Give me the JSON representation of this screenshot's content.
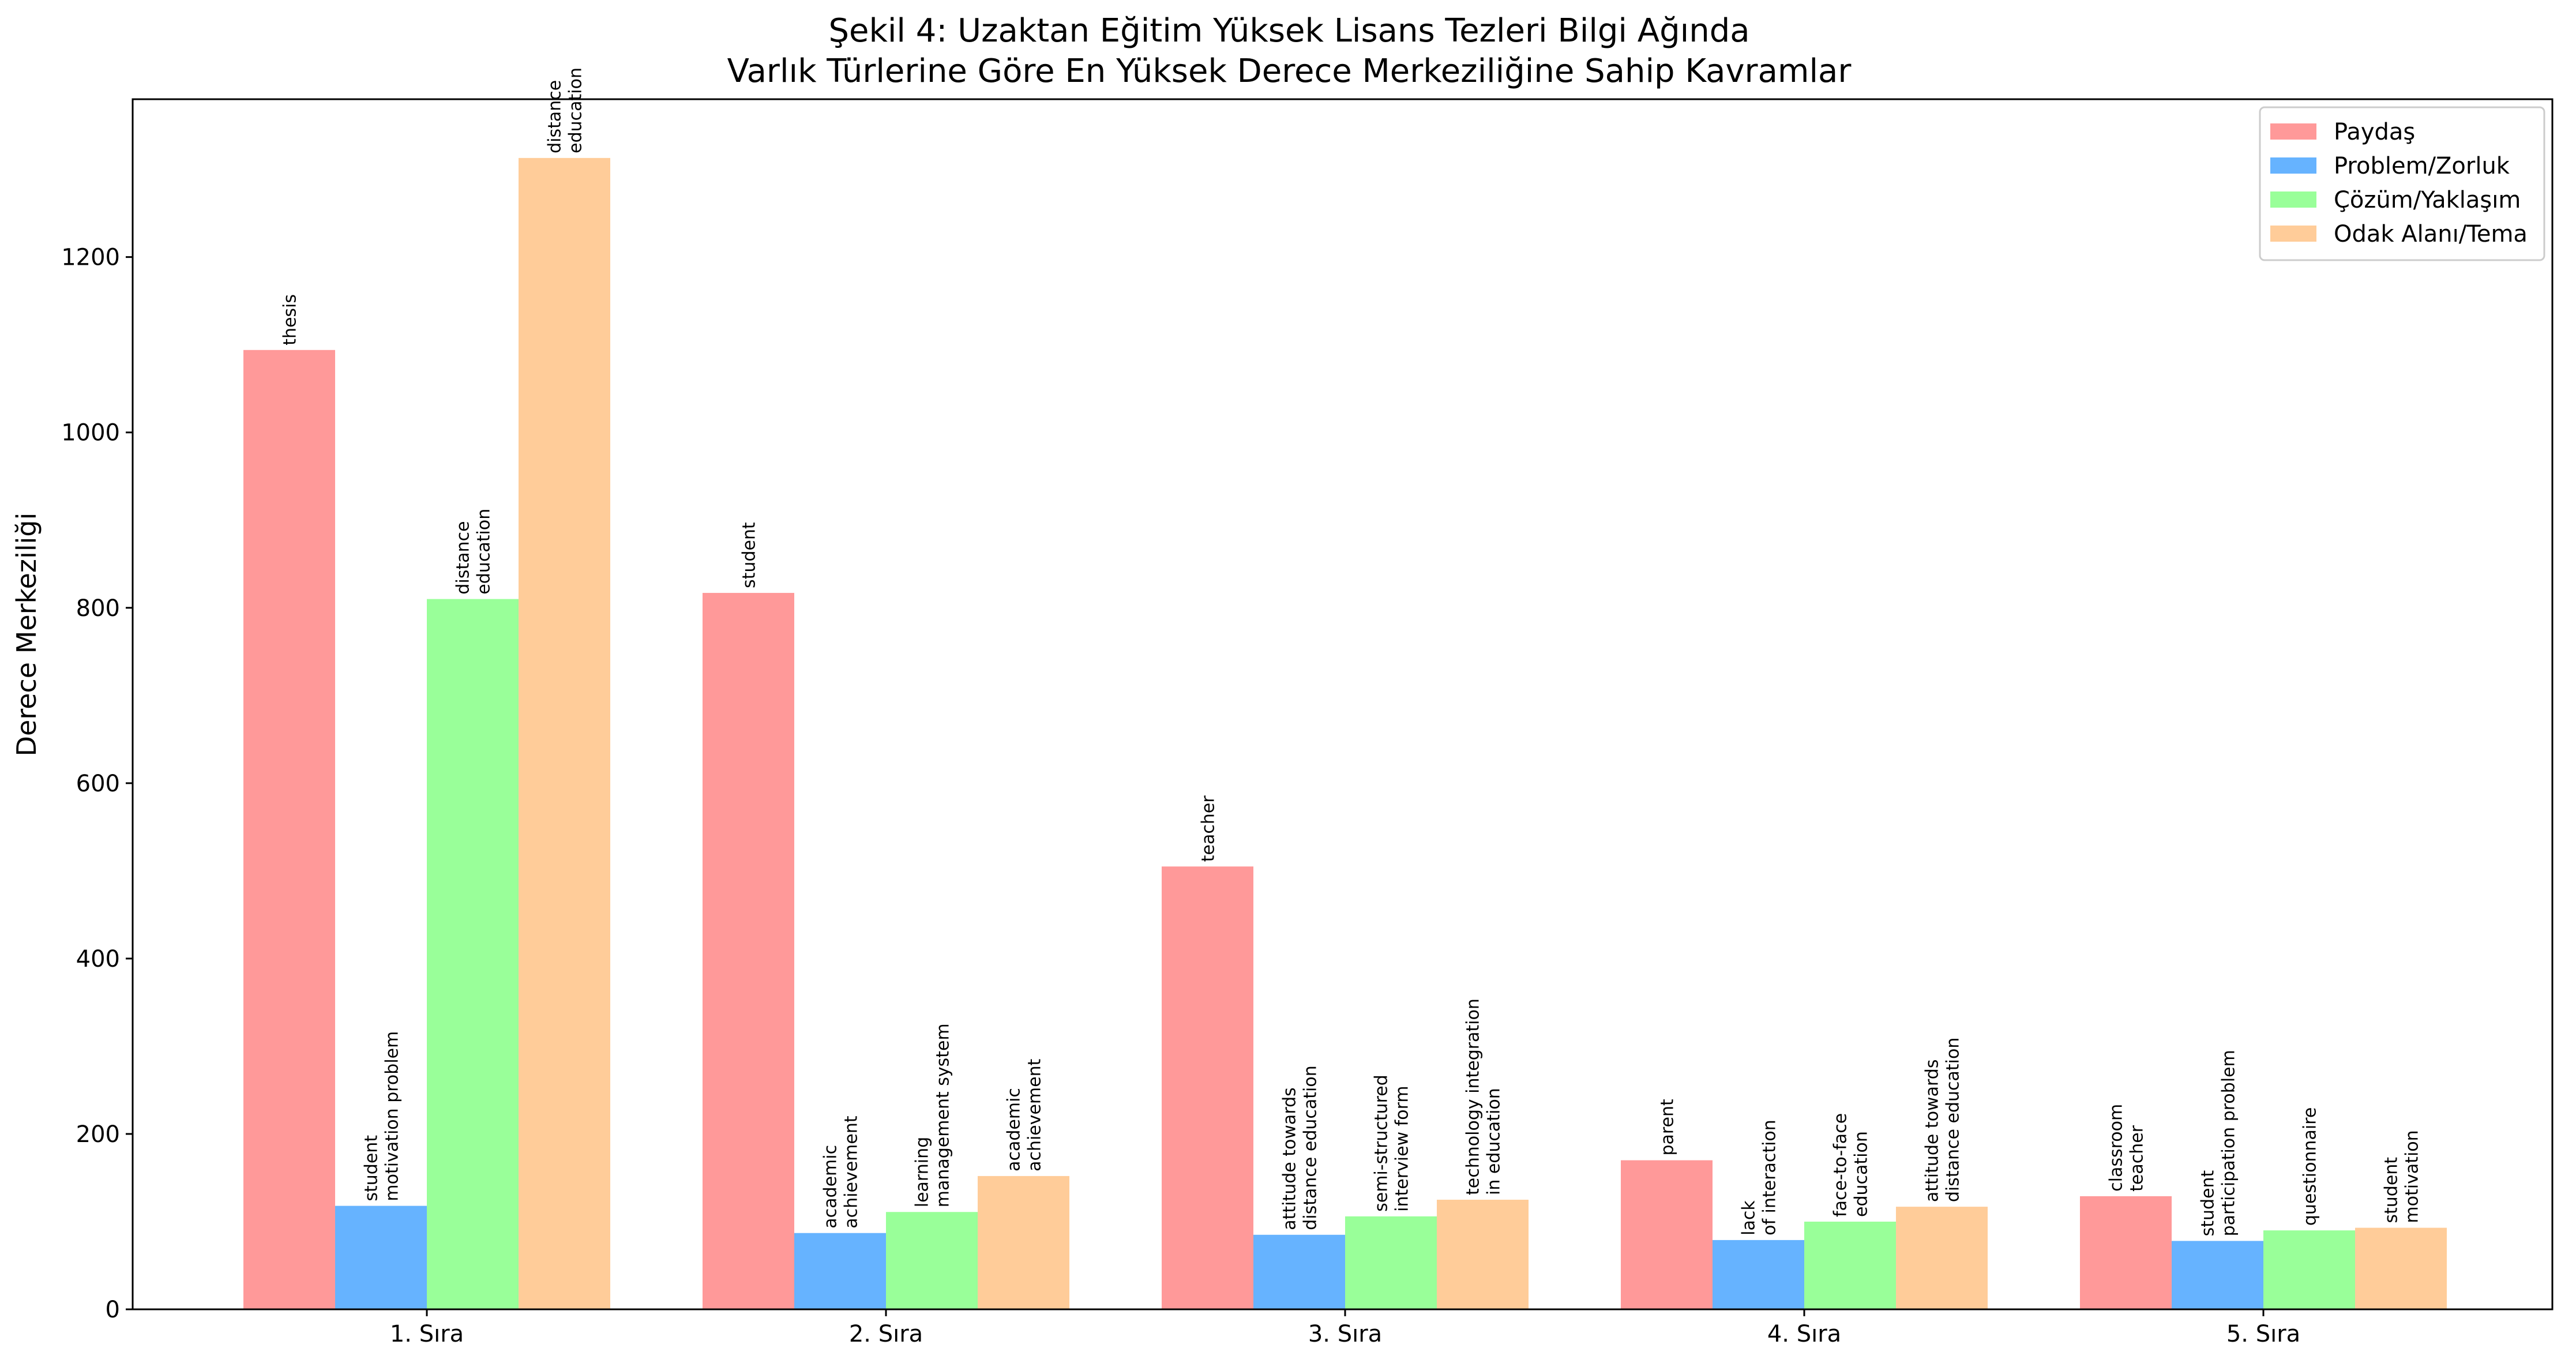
{
  "chart_data": {
    "type": "bar",
    "title": [
      "Şekil 4: Uzaktan Eğitim Yüksek Lisans Tezleri Bilgi Ağında",
      "Varlık Türlerine Göre En Yüksek Derece Merkeziliğine Sahip Kavramlar"
    ],
    "xlabel": "",
    "ylabel": "Derece Merkeziliği",
    "ylim": [
      0,
      1380
    ],
    "yticks": [
      0,
      200,
      400,
      600,
      800,
      1000,
      1200
    ],
    "categories": [
      "1. Sıra",
      "2. Sıra",
      "3. Sıra",
      "4. Sıra",
      "5. Sıra"
    ],
    "legend_position": "top-right",
    "grid": false,
    "series": [
      {
        "name": "Paydaş",
        "color": "#ff9999",
        "values": [
          1094,
          817,
          505,
          170,
          129
        ],
        "labels": [
          [
            "thesis"
          ],
          [
            "student"
          ],
          [
            "teacher"
          ],
          [
            "parent"
          ],
          [
            "classroom",
            "teacher"
          ]
        ]
      },
      {
        "name": "Problem/Zorluk",
        "color": "#66b3ff",
        "values": [
          118,
          87,
          85,
          79,
          78
        ],
        "labels": [
          [
            "student",
            "motivation problem"
          ],
          [
            "academic",
            "achievement"
          ],
          [
            "attitude towards",
            "distance education"
          ],
          [
            "lack",
            "of interaction"
          ],
          [
            "student",
            "participation problem"
          ]
        ]
      },
      {
        "name": "Çözüm/Yaklaşım",
        "color": "#99ff99",
        "values": [
          810,
          111,
          106,
          100,
          90
        ],
        "labels": [
          [
            "distance",
            "education"
          ],
          [
            "learning",
            "management system"
          ],
          [
            "semi-structured",
            "interview form"
          ],
          [
            "face-to-face",
            "education"
          ],
          [
            "questionnaire"
          ]
        ]
      },
      {
        "name": "Odak Alanı/Tema",
        "color": "#ffcc99",
        "values": [
          1313,
          152,
          125,
          117,
          93
        ],
        "labels": [
          [
            "distance",
            "education"
          ],
          [
            "academic",
            "achievement"
          ],
          [
            "technology integration",
            "in education"
          ],
          [
            "attitude towards",
            "distance education"
          ],
          [
            "student",
            "motivation"
          ]
        ]
      }
    ]
  }
}
